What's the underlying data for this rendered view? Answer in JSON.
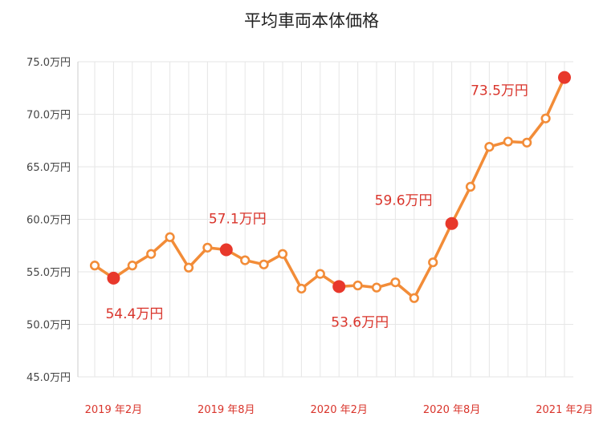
{
  "chart_data": {
    "type": "line",
    "title": "平均車両本体価格",
    "ylabel": "",
    "xlabel": "",
    "ylim": [
      45.0,
      75.0
    ],
    "yticks": [
      "75.0万円",
      "70.0万円",
      "65.0万円",
      "60.0万円",
      "55.0万円",
      "50.0万円",
      "45.0万円"
    ],
    "ytick_values": [
      75,
      70,
      65,
      60,
      55,
      50,
      45
    ],
    "x": [
      "2019-01",
      "2019-02",
      "2019-03",
      "2019-04",
      "2019-05",
      "2019-06",
      "2019-07",
      "2019-08",
      "2019-09",
      "2019-10",
      "2019-11",
      "2019-12",
      "2020-01",
      "2020-02",
      "2020-03",
      "2020-04",
      "2020-05",
      "2020-06",
      "2020-07",
      "2020-08",
      "2020-09",
      "2020-10",
      "2020-11",
      "2020-12",
      "2021-01",
      "2021-02"
    ],
    "xtick_labels": [
      {
        "at": "2019-02",
        "label": "2019 年2月"
      },
      {
        "at": "2019-08",
        "label": "2019 年8月"
      },
      {
        "at": "2020-02",
        "label": "2020 年2月"
      },
      {
        "at": "2020-08",
        "label": "2020 年8月"
      },
      {
        "at": "2021-02",
        "label": "2021 年2月"
      }
    ],
    "series": [
      {
        "values": [
          55.6,
          54.4,
          55.6,
          56.7,
          58.3,
          55.4,
          57.3,
          57.1,
          56.1,
          55.7,
          56.7,
          53.4,
          54.8,
          53.6,
          53.7,
          53.5,
          54.0,
          52.5,
          55.9,
          59.6,
          63.1,
          66.9,
          67.4,
          67.3,
          69.6,
          73.5
        ]
      }
    ],
    "highlights": [
      {
        "at": "2019-02",
        "label": "54.4万円",
        "label_pos": "below"
      },
      {
        "at": "2019-08",
        "label": "57.1万円",
        "label_pos": "above"
      },
      {
        "at": "2020-02",
        "label": "53.6万円",
        "label_pos": "below"
      },
      {
        "at": "2020-08",
        "label": "59.6万円",
        "label_pos": "above-left"
      },
      {
        "at": "2021-02",
        "label": "73.5万円",
        "label_pos": "left"
      }
    ],
    "grid": true,
    "colors": {
      "line": "#f28c38",
      "highlight": "#e8382b",
      "label": "#d9342b",
      "grid": "#e6e6e6"
    }
  }
}
